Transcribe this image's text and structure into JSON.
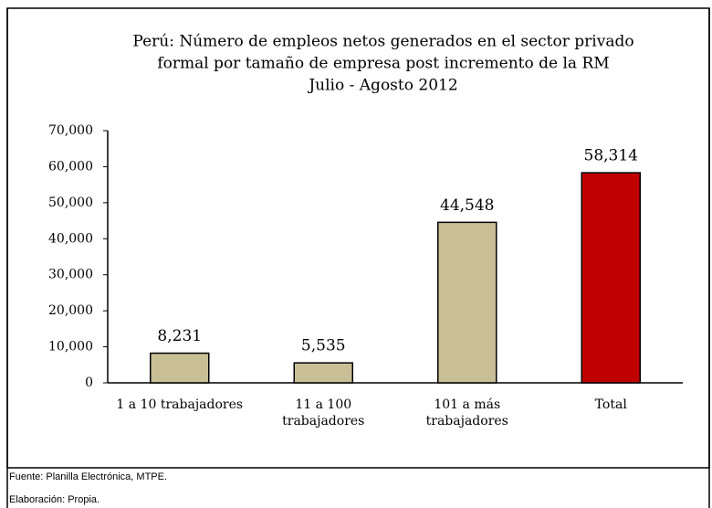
{
  "chart_data": {
    "type": "bar",
    "title": [
      "Perú: Número de empleos netos generados en el sector privado",
      "formal por tamaño de empresa post incremento de la RM",
      "Julio - Agosto 2012"
    ],
    "categories": [
      [
        "1 a 10 trabajadores"
      ],
      [
        "11 a 100",
        "trabajadores"
      ],
      [
        "101 a más",
        "trabajadores"
      ],
      [
        "Total"
      ]
    ],
    "values": [
      8231,
      5535,
      44548,
      58314
    ],
    "value_labels": [
      "8,231",
      "5,535",
      "44,548",
      "58,314"
    ],
    "colors": [
      "#c9bf97",
      "#c9bf97",
      "#c9bf97",
      "#c00000"
    ],
    "ylim": [
      0,
      70000
    ],
    "yticks": [
      0,
      {
        "value": 10000,
        "label": "10,000"
      },
      {
        "value": 20000,
        "label": "20,000"
      },
      {
        "value": 30000,
        "label": "30,000"
      },
      {
        "value": 40000,
        "label": "40,000"
      },
      {
        "value": 50000,
        "label": "50,000"
      },
      {
        "value": 60000,
        "label": "60,000"
      },
      {
        "value": 70000,
        "label": "70,000"
      }
    ],
    "grid": false
  },
  "notes": [
    "Fuente: Planilla Electrónica, MTPE.",
    "Elaboración: Propia."
  ]
}
